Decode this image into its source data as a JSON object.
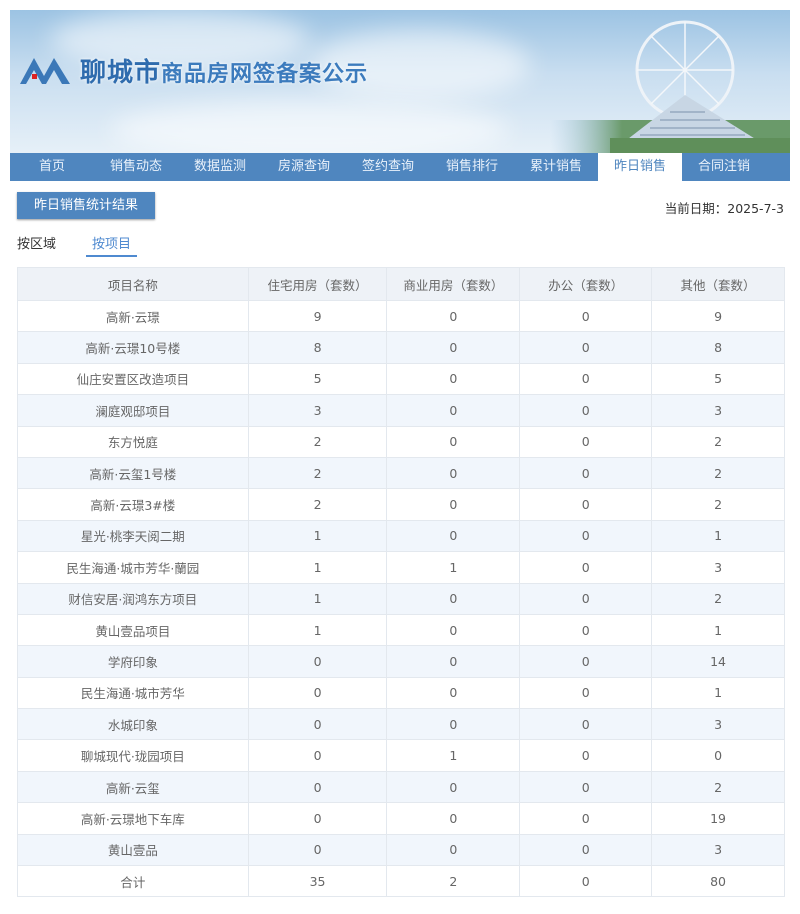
{
  "header": {
    "brand": "聊城市",
    "title": "商品房网签备案公示",
    "logo_text": "liaocheng"
  },
  "nav": [
    "首页",
    "销售动态",
    "数据监测",
    "房源查询",
    "签约查询",
    "销售排行",
    "累计销售",
    "昨日销售",
    "合同注销"
  ],
  "nav_active": 7,
  "stat_button": "昨日销售统计结果",
  "date_label": "当前日期：2025-7-3",
  "tabs": [
    "按区域",
    "按项目"
  ],
  "tab_active": 1,
  "table": {
    "headers": [
      "项目名称",
      "住宅用房（套数）",
      "商业用房（套数）",
      "办公（套数）",
      "其他（套数）"
    ],
    "rows": [
      [
        "高新·云璟",
        "9",
        "0",
        "0",
        "9"
      ],
      [
        "高新·云璟10号楼",
        "8",
        "0",
        "0",
        "8"
      ],
      [
        "仙庄安置区改造项目",
        "5",
        "0",
        "0",
        "5"
      ],
      [
        "澜庭观邸项目",
        "3",
        "0",
        "0",
        "3"
      ],
      [
        "东方悦庭",
        "2",
        "0",
        "0",
        "2"
      ],
      [
        "高新·云玺1号楼",
        "2",
        "0",
        "0",
        "2"
      ],
      [
        "高新·云璟3#楼",
        "2",
        "0",
        "0",
        "2"
      ],
      [
        "星光·桃李天阅二期",
        "1",
        "0",
        "0",
        "1"
      ],
      [
        "民生海通·城市芳华·蘭园",
        "1",
        "1",
        "0",
        "3"
      ],
      [
        "财信安居·润鸿东方项目",
        "1",
        "0",
        "0",
        "2"
      ],
      [
        "黄山壹品项目",
        "1",
        "0",
        "0",
        "1"
      ],
      [
        "学府印象",
        "0",
        "0",
        "0",
        "14"
      ],
      [
        "民生海通·城市芳华",
        "0",
        "0",
        "0",
        "1"
      ],
      [
        "水城印象",
        "0",
        "0",
        "0",
        "3"
      ],
      [
        "聊城现代·珑园项目",
        "0",
        "1",
        "0",
        "0"
      ],
      [
        "高新·云玺",
        "0",
        "0",
        "0",
        "2"
      ],
      [
        "高新·云璟地下车库",
        "0",
        "0",
        "0",
        "19"
      ],
      [
        "黄山壹品",
        "0",
        "0",
        "0",
        "3"
      ],
      [
        "合计",
        "35",
        "2",
        "0",
        "80"
      ]
    ]
  },
  "colors": {
    "primary": "#4f86bf",
    "tab_active": "#4f8ad0",
    "row_alt": "#f1f6fc"
  }
}
